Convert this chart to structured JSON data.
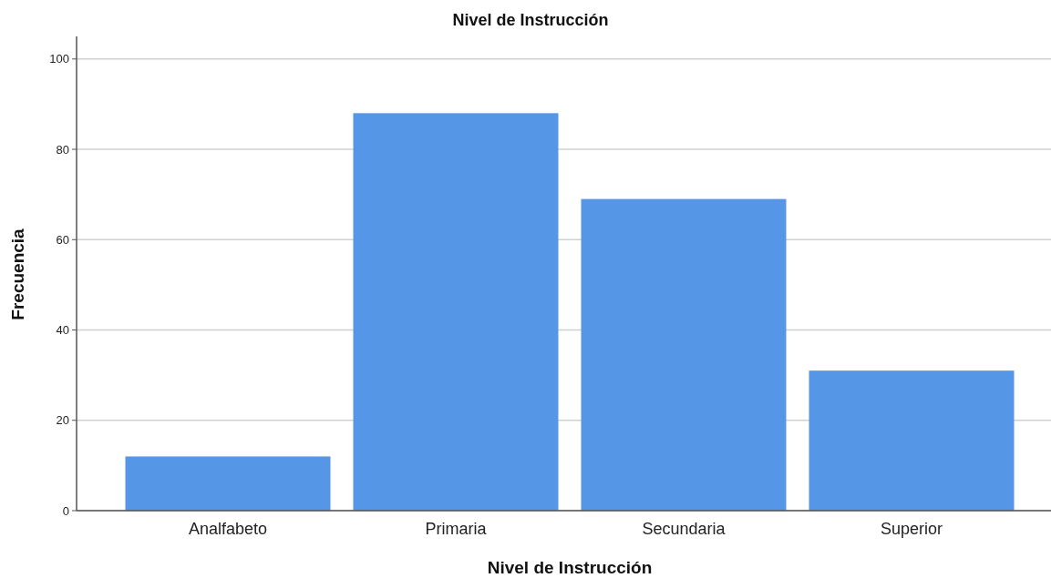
{
  "chart_data": {
    "type": "bar",
    "title": "Nivel de Instrucción",
    "xlabel": "Nivel de Instrucción",
    "ylabel": "Frecuencia",
    "categories": [
      "Analfabeto",
      "Primaria",
      "Secundaria",
      "Superior"
    ],
    "values": [
      12,
      88,
      69,
      31
    ],
    "color": "#5596e6",
    "ylim": [
      0,
      105
    ],
    "yticks": [
      0,
      20,
      40,
      60,
      80,
      100
    ],
    "grid": "y"
  }
}
